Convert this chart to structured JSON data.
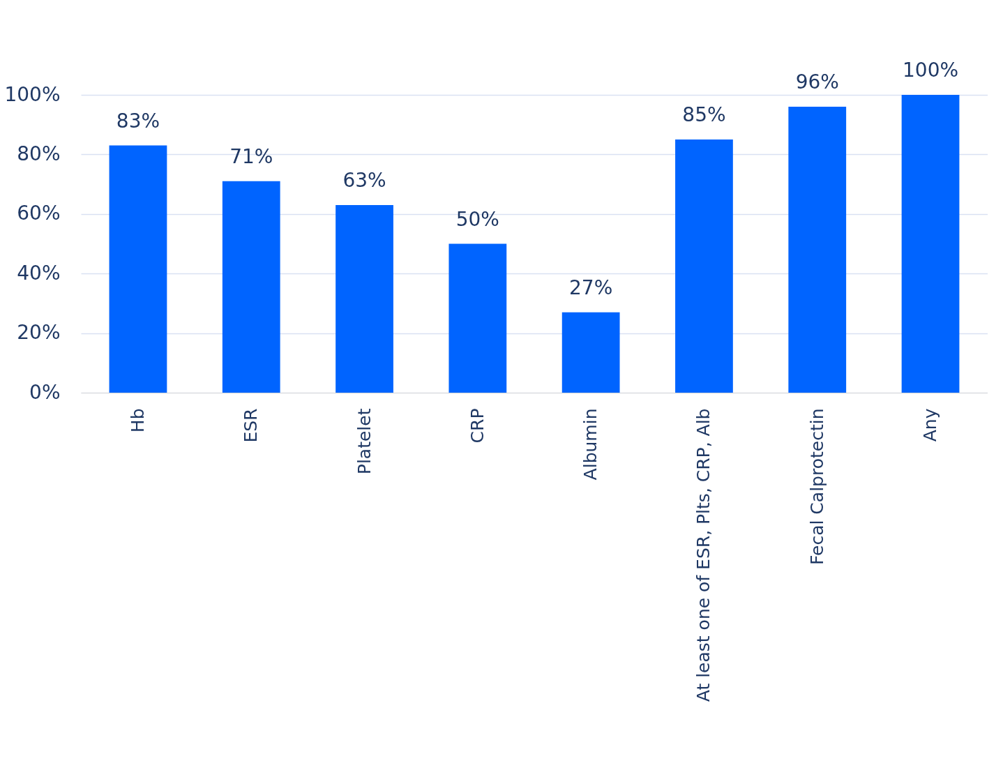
{
  "chart_data": {
    "type": "bar",
    "categories": [
      "Hb",
      "ESR",
      "Platelet",
      "CRP",
      "Albumin",
      "At least one of ESR, Plts, CRP, Alb",
      "Fecal Calprotectin",
      "Any"
    ],
    "values": [
      83,
      71,
      63,
      50,
      27,
      85,
      96,
      100
    ],
    "value_labels": [
      "83%",
      "71%",
      "63%",
      "50%",
      "27%",
      "85%",
      "96%",
      "100%"
    ],
    "color": "#0064ff",
    "ylim": [
      0,
      100
    ],
    "yticks": [
      {
        "value": 0,
        "label": "0%"
      },
      {
        "value": 20,
        "label": "20%"
      },
      {
        "value": 40,
        "label": "40%"
      },
      {
        "value": 60,
        "label": "60%"
      },
      {
        "value": 80,
        "label": "80%"
      },
      {
        "value": 100,
        "label": "100%"
      }
    ],
    "grid": "y"
  }
}
